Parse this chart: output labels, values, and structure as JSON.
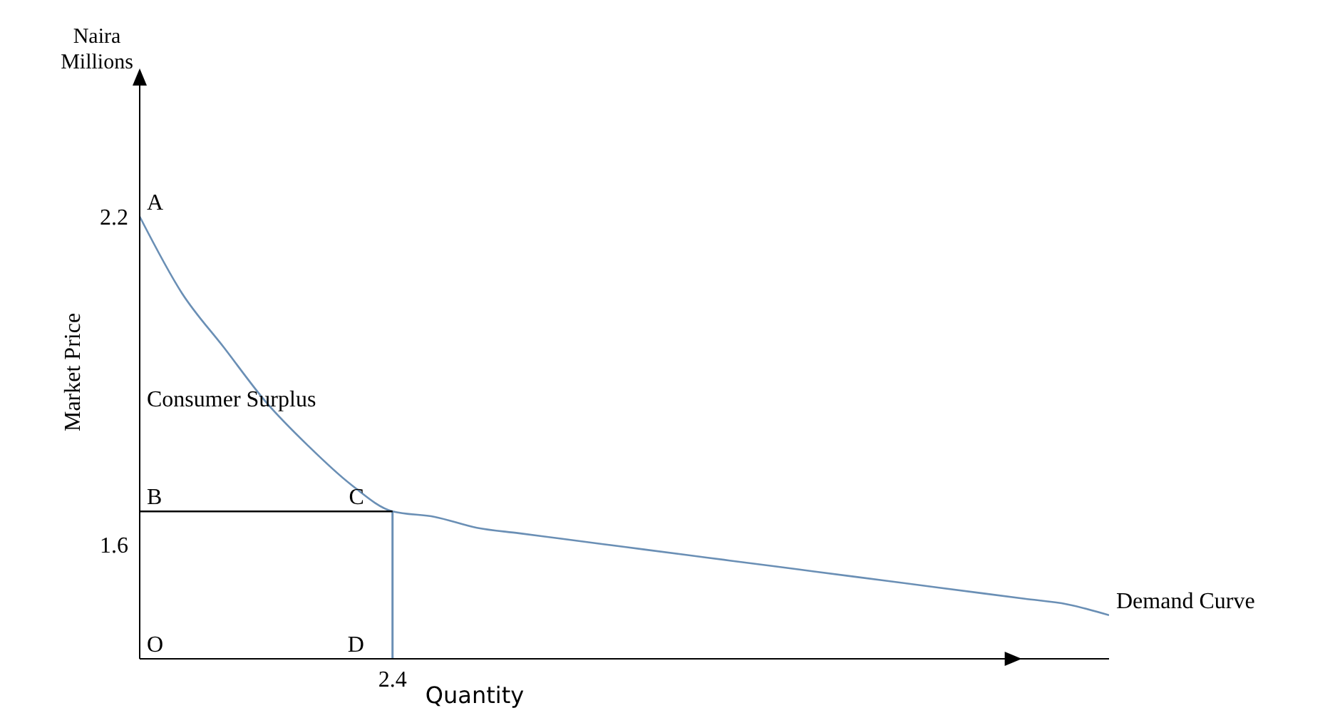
{
  "chart_data": {
    "type": "line",
    "xlabel": "Quantity",
    "ylabel": "Market Price",
    "categories": [
      null,
      null,
      null,
      null,
      null,
      null,
      "2.4",
      null,
      null,
      null,
      null,
      null,
      null,
      null,
      null,
      null,
      null,
      null,
      null,
      null,
      null,
      null,
      null,
      null
    ],
    "ylim": [
      1.39,
      2.44
    ],
    "yticks": [
      1.6,
      2.2
    ],
    "grid": false,
    "marker": "none",
    "line_style": "solid",
    "series": [
      {
        "color": "#6a8fb5",
        "values": [
          2.2,
          2.06,
          1.96,
          1.86,
          1.78,
          1.71,
          1.66,
          1.65,
          1.63,
          1.62,
          1.61,
          1.6,
          1.59,
          1.58,
          1.57,
          1.56,
          1.55,
          1.54,
          1.53,
          1.52,
          1.51,
          1.5,
          1.49,
          1.47
        ]
      },
      {
        "color": "#000000",
        "values": [
          1.66,
          1.66,
          1.66,
          1.66,
          1.66,
          1.66,
          1.66,
          null,
          null,
          null,
          null,
          null,
          null,
          null,
          null,
          null,
          null,
          null,
          null,
          null,
          null,
          null,
          null,
          null
        ]
      },
      {
        "type": "bar",
        "color": "#6a8fb5",
        "values": [
          null,
          null,
          null,
          null,
          null,
          null,
          1.66,
          null,
          null,
          null,
          null,
          null,
          null,
          null,
          null,
          null,
          null,
          null,
          null,
          null,
          null,
          null,
          null,
          null
        ]
      }
    ],
    "annotations": [
      "Naira Millions",
      "A",
      "Consumer Surplus",
      {
        "text": "B",
        "y": 1.66
      },
      {
        "text": "C",
        "x": "2.4",
        "y": 1.66
      },
      "O",
      {
        "text": "D",
        "x": "2.4",
        "y": 1.39
      },
      "Demand Curve"
    ]
  }
}
